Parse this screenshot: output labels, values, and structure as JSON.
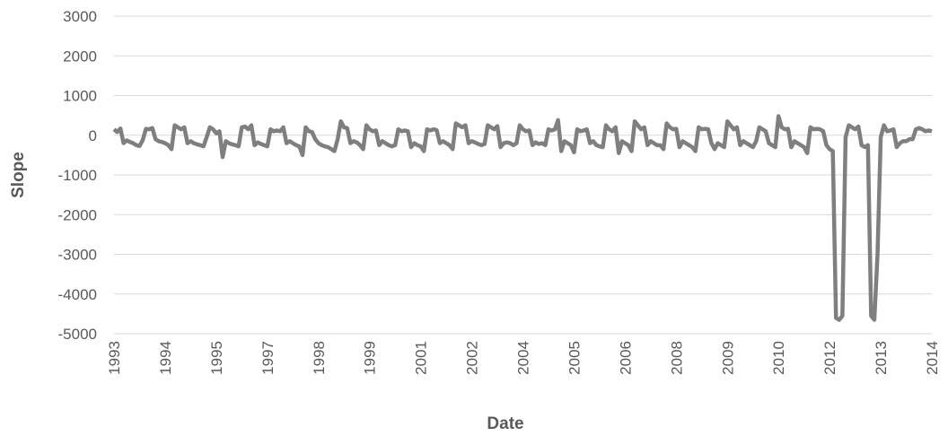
{
  "chart_data": {
    "type": "line",
    "x_label": "Date",
    "y_label": "Slope",
    "categories": [
      "1993",
      null,
      null,
      null,
      null,
      null,
      null,
      null,
      null,
      null,
      null,
      null,
      null,
      null,
      null,
      null,
      "1994",
      null,
      null,
      null,
      null,
      null,
      null,
      null,
      null,
      null,
      null,
      null,
      null,
      null,
      null,
      null,
      "1995",
      null,
      null,
      null,
      null,
      null,
      null,
      null,
      null,
      null,
      null,
      null,
      null,
      null,
      null,
      null,
      "1997",
      null,
      null,
      null,
      null,
      null,
      null,
      null,
      null,
      null,
      null,
      null,
      null,
      null,
      null,
      null,
      "1998",
      null,
      null,
      null,
      null,
      null,
      null,
      null,
      null,
      null,
      null,
      null,
      null,
      null,
      null,
      null,
      "1999",
      null,
      null,
      null,
      null,
      null,
      null,
      null,
      null,
      null,
      null,
      null,
      null,
      null,
      null,
      null,
      "2001",
      null,
      null,
      null,
      null,
      null,
      null,
      null,
      null,
      null,
      null,
      null,
      null,
      null,
      null,
      null,
      "2002",
      null,
      null,
      null,
      null,
      null,
      null,
      null,
      null,
      null,
      null,
      null,
      null,
      null,
      null,
      null,
      "2004",
      null,
      null,
      null,
      null,
      null,
      null,
      null,
      null,
      null,
      null,
      null,
      null,
      null,
      null,
      null,
      "2005",
      null,
      null,
      null,
      null,
      null,
      null,
      null,
      null,
      null,
      null,
      null,
      null,
      null,
      null,
      null,
      "2006",
      null,
      null,
      null,
      null,
      null,
      null,
      null,
      null,
      null,
      null,
      null,
      null,
      null,
      null,
      null,
      "2008",
      null,
      null,
      null,
      null,
      null,
      null,
      null,
      null,
      null,
      null,
      null,
      null,
      null,
      null,
      null,
      "2009",
      null,
      null,
      null,
      null,
      null,
      null,
      null,
      null,
      null,
      null,
      null,
      null,
      null,
      null,
      null,
      "2010",
      null,
      null,
      null,
      null,
      null,
      null,
      null,
      null,
      null,
      null,
      null,
      null,
      null,
      null,
      null,
      "2012",
      null,
      null,
      null,
      null,
      null,
      null,
      null,
      null,
      null,
      null,
      null,
      null,
      null,
      null,
      null,
      "2013",
      null,
      null,
      null,
      null,
      null,
      null,
      null,
      null,
      null,
      null,
      null,
      null,
      null,
      null,
      null,
      "2014"
    ],
    "series": [
      {
        "color": "#7f7f7f",
        "values": [
          150,
          80,
          170,
          -200,
          -130,
          -170,
          -200,
          -250,
          -270,
          -120,
          160,
          150,
          180,
          -100,
          -150,
          -170,
          -200,
          -250,
          -350,
          250,
          200,
          150,
          200,
          -200,
          -150,
          -200,
          -230,
          -250,
          -280,
          -50,
          200,
          150,
          50,
          100,
          -550,
          -150,
          -200,
          -230,
          -250,
          -280,
          200,
          220,
          150,
          250,
          -250,
          -180,
          -220,
          -250,
          -280,
          150,
          100,
          120,
          100,
          200,
          -200,
          -150,
          -200,
          -250,
          -280,
          -500,
          200,
          100,
          80,
          -100,
          -200,
          -250,
          -280,
          -300,
          -350,
          -400,
          -100,
          350,
          200,
          180,
          -200,
          -150,
          -180,
          -250,
          -350,
          250,
          150,
          100,
          120,
          -250,
          -150,
          -200,
          -250,
          -280,
          -250,
          150,
          100,
          120,
          100,
          -300,
          -200,
          -250,
          -280,
          -400,
          150,
          120,
          150,
          130,
          -200,
          -150,
          -200,
          -250,
          -350,
          300,
          250,
          200,
          250,
          -200,
          -150,
          -180,
          -220,
          -250,
          -220,
          250,
          200,
          150,
          230,
          -300,
          -200,
          -180,
          -200,
          -250,
          -200,
          250,
          150,
          100,
          120,
          -250,
          -180,
          -220,
          -200,
          -250,
          150,
          120,
          150,
          380,
          -400,
          -150,
          -200,
          -250,
          -430,
          150,
          100,
          120,
          150,
          -200,
          -150,
          -250,
          -280,
          -300,
          250,
          150,
          100,
          200,
          -450,
          -150,
          -200,
          -250,
          -400,
          350,
          250,
          150,
          200,
          -250,
          -150,
          -200,
          -250,
          -250,
          -350,
          300,
          200,
          150,
          160,
          -300,
          -150,
          -200,
          -250,
          -300,
          -400,
          200,
          150,
          160,
          150,
          -200,
          -350,
          -200,
          -250,
          -300,
          350,
          250,
          150,
          200,
          -250,
          -150,
          -200,
          -250,
          -300,
          -150,
          200,
          150,
          100,
          -200,
          -250,
          -300,
          480,
          200,
          150,
          160,
          -300,
          -150,
          -200,
          -250,
          -300,
          -450,
          200,
          150,
          160,
          150,
          100,
          -250,
          -350,
          -400,
          -4600,
          -4650,
          -4550,
          -50,
          250,
          200,
          150,
          220,
          -250,
          -300,
          -250,
          -4550,
          -4650,
          -3000,
          -50,
          250,
          100,
          120,
          150,
          -300,
          -200,
          -150,
          -150,
          -100,
          -100,
          150,
          180,
          150,
          100,
          120,
          100
        ]
      }
    ],
    "ylim": [
      -5000,
      3000
    ],
    "yticks": [
      -5000,
      -4000,
      -3000,
      -2000,
      -1000,
      0,
      1000,
      2000,
      3000
    ],
    "grid": true
  }
}
